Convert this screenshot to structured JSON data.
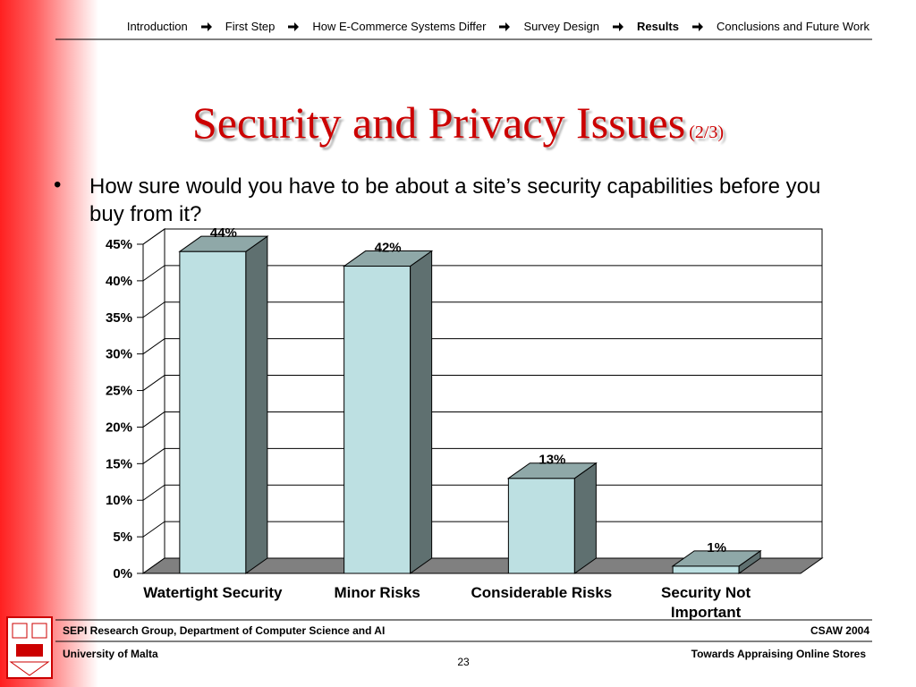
{
  "nav": [
    "Introduction",
    "First Step",
    "How E-Commerce Systems Differ",
    "Survey Design",
    "Results",
    "Conclusions and Future Work"
  ],
  "nav_active_index": 4,
  "title": "Security and Privacy Issues",
  "title_suffix": "(2/3)",
  "bullet": "How sure would you have to be about a site’s security capabilities before you buy from it?",
  "chart_data": {
    "type": "bar3d",
    "categories": [
      "Watertight Security",
      "Minor Risks",
      "Considerable Risks",
      "Security Not Important"
    ],
    "values": [
      44,
      42,
      13,
      1
    ],
    "value_labels": [
      "44%",
      "42%",
      "13%",
      "1%"
    ],
    "color": "#bde0e2",
    "side_color": "#5f7070",
    "top_color": "#8fa8a8",
    "ylim": [
      0,
      45
    ],
    "yticks": [
      {
        "value": 0,
        "label": "0%"
      },
      {
        "value": 5,
        "label": "5%"
      },
      {
        "value": 10,
        "label": "10%"
      },
      {
        "value": 15,
        "label": "15%"
      },
      {
        "value": 20,
        "label": "20%"
      },
      {
        "value": 25,
        "label": "25%"
      },
      {
        "value": 30,
        "label": "30%"
      },
      {
        "value": 35,
        "label": "35%"
      },
      {
        "value": 40,
        "label": "40%"
      },
      {
        "value": 45,
        "label": "45%"
      }
    ],
    "grid": true
  },
  "footer": {
    "group": "SEPI Research Group, Department of Computer Science and AI",
    "event": "CSAW 2004",
    "university": "University of Malta",
    "talk": "Towards Appraising Online Stores",
    "page": "23"
  }
}
